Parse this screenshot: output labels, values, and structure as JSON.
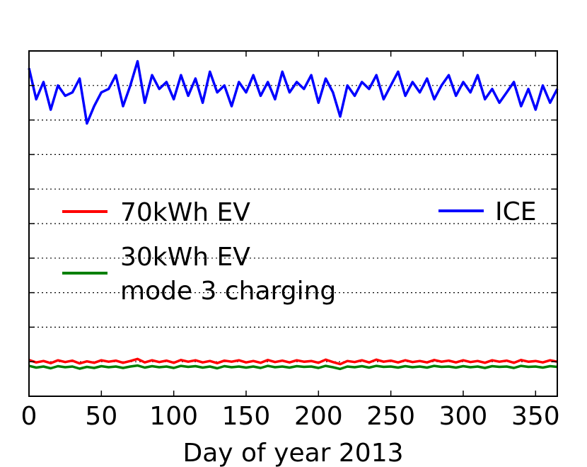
{
  "chart_data": {
    "type": "line",
    "title": "",
    "xlabel": "Day of year 2013",
    "ylabel": "",
    "xlim": [
      0,
      365
    ],
    "ylim": [
      0,
      10
    ],
    "x_ticks": [
      0,
      50,
      100,
      150,
      200,
      250,
      300,
      350
    ],
    "y_ticks": [
      0,
      1,
      2,
      3,
      4,
      5,
      6,
      7,
      8,
      9,
      10
    ],
    "y_tick_labels_visible": false,
    "grid": "horizontal dotted",
    "legend": [
      {
        "label": "70kWh EV",
        "color": "#ff0000",
        "placement": "center-left"
      },
      {
        "label": "30kWh EV\nmode 3 charging",
        "color": "#008000",
        "placement": "center-left"
      },
      {
        "label": "ICE",
        "color": "#0000ff",
        "placement": "center-right"
      }
    ],
    "series": [
      {
        "name": "ICE",
        "color": "#0000ff",
        "mean": 8.8,
        "x": [
          0,
          5,
          10,
          15,
          20,
          25,
          30,
          35,
          40,
          45,
          50,
          55,
          60,
          65,
          70,
          75,
          80,
          85,
          90,
          95,
          100,
          105,
          110,
          115,
          120,
          125,
          130,
          135,
          140,
          145,
          150,
          155,
          160,
          165,
          170,
          175,
          180,
          185,
          190,
          195,
          200,
          205,
          210,
          215,
          220,
          225,
          230,
          235,
          240,
          245,
          250,
          255,
          260,
          265,
          270,
          275,
          280,
          285,
          290,
          295,
          300,
          305,
          310,
          315,
          320,
          325,
          330,
          335,
          340,
          345,
          350,
          355,
          360,
          365
        ],
        "values": [
          9.5,
          8.6,
          9.1,
          8.3,
          9.0,
          8.7,
          8.8,
          9.2,
          7.9,
          8.4,
          8.8,
          8.9,
          9.3,
          8.4,
          9.0,
          9.7,
          8.5,
          9.3,
          8.9,
          9.1,
          8.6,
          9.3,
          8.7,
          9.2,
          8.5,
          9.4,
          8.8,
          9.0,
          8.4,
          9.1,
          8.8,
          9.3,
          8.7,
          9.1,
          8.6,
          9.4,
          8.8,
          9.1,
          8.9,
          9.3,
          8.5,
          9.2,
          8.8,
          8.1,
          9.0,
          8.7,
          9.1,
          8.9,
          9.3,
          8.6,
          9.0,
          9.4,
          8.7,
          9.1,
          8.8,
          9.2,
          8.6,
          9.0,
          9.3,
          8.7,
          9.1,
          8.8,
          9.3,
          8.6,
          8.9,
          8.5,
          8.8,
          9.1,
          8.4,
          8.9,
          8.3,
          9.0,
          8.5,
          8.9
        ]
      },
      {
        "name": "70kWh EV",
        "color": "#ff0000",
        "mean": 1.0,
        "x": [
          0,
          5,
          10,
          15,
          20,
          25,
          30,
          35,
          40,
          45,
          50,
          55,
          60,
          65,
          70,
          75,
          80,
          85,
          90,
          95,
          100,
          105,
          110,
          115,
          120,
          125,
          130,
          135,
          140,
          145,
          150,
          155,
          160,
          165,
          170,
          175,
          180,
          185,
          190,
          195,
          200,
          205,
          210,
          215,
          220,
          225,
          230,
          235,
          240,
          245,
          250,
          255,
          260,
          265,
          270,
          275,
          280,
          285,
          290,
          295,
          300,
          305,
          310,
          315,
          320,
          325,
          330,
          335,
          340,
          345,
          350,
          355,
          360,
          365
        ],
        "values": [
          1.05,
          0.98,
          1.02,
          0.96,
          1.04,
          0.99,
          1.03,
          0.95,
          1.01,
          0.97,
          1.04,
          1.0,
          1.03,
          0.97,
          1.02,
          1.08,
          0.98,
          1.04,
          0.99,
          1.03,
          0.97,
          1.05,
          1.0,
          1.04,
          0.98,
          1.02,
          0.96,
          1.03,
          1.0,
          1.04,
          0.98,
          1.02,
          0.97,
          1.05,
          0.99,
          1.03,
          0.98,
          1.04,
          1.0,
          1.02,
          0.97,
          1.06,
          0.99,
          0.93,
          1.02,
          0.99,
          1.04,
          0.98,
          1.06,
          1.0,
          1.03,
          0.98,
          1.04,
          0.99,
          1.02,
          0.98,
          1.05,
          1.0,
          1.03,
          0.98,
          1.04,
          0.99,
          1.02,
          0.97,
          1.04,
          1.0,
          1.03,
          0.97,
          1.05,
          1.0,
          1.02,
          0.98,
          1.04,
          1.0
        ]
      },
      {
        "name": "30kWh EV mode 3 charging",
        "color": "#008000",
        "mean": 0.85,
        "x": [
          0,
          5,
          10,
          15,
          20,
          25,
          30,
          35,
          40,
          45,
          50,
          55,
          60,
          65,
          70,
          75,
          80,
          85,
          90,
          95,
          100,
          105,
          110,
          115,
          120,
          125,
          130,
          135,
          140,
          145,
          150,
          155,
          160,
          165,
          170,
          175,
          180,
          185,
          190,
          195,
          200,
          205,
          210,
          215,
          220,
          225,
          230,
          235,
          240,
          245,
          250,
          255,
          260,
          265,
          270,
          275,
          280,
          285,
          290,
          295,
          300,
          305,
          310,
          315,
          320,
          325,
          330,
          335,
          340,
          345,
          350,
          355,
          360,
          365
        ],
        "values": [
          0.88,
          0.83,
          0.86,
          0.81,
          0.87,
          0.84,
          0.86,
          0.8,
          0.85,
          0.82,
          0.87,
          0.84,
          0.86,
          0.82,
          0.86,
          0.89,
          0.83,
          0.87,
          0.84,
          0.86,
          0.82,
          0.88,
          0.85,
          0.87,
          0.83,
          0.86,
          0.81,
          0.87,
          0.84,
          0.86,
          0.83,
          0.86,
          0.82,
          0.88,
          0.84,
          0.86,
          0.83,
          0.87,
          0.85,
          0.86,
          0.82,
          0.88,
          0.84,
          0.79,
          0.86,
          0.84,
          0.87,
          0.83,
          0.88,
          0.85,
          0.86,
          0.83,
          0.87,
          0.84,
          0.86,
          0.83,
          0.88,
          0.85,
          0.86,
          0.83,
          0.87,
          0.84,
          0.86,
          0.82,
          0.87,
          0.85,
          0.86,
          0.82,
          0.88,
          0.85,
          0.86,
          0.83,
          0.87,
          0.85
        ]
      }
    ]
  }
}
